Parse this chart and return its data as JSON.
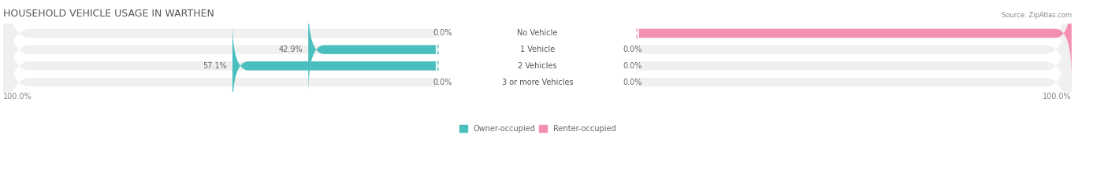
{
  "title": "HOUSEHOLD VEHICLE USAGE IN WARTHEN",
  "source": "Source: ZipAtlas.com",
  "categories": [
    "No Vehicle",
    "1 Vehicle",
    "2 Vehicles",
    "3 or more Vehicles"
  ],
  "owner_values": [
    0.0,
    42.9,
    57.1,
    0.0
  ],
  "renter_values": [
    100.0,
    0.0,
    0.0,
    0.0
  ],
  "owner_color": "#4bbfbf",
  "renter_color": "#f48fb1",
  "owner_light_color": "#b2dfdb",
  "renter_light_color": "#fce4ec",
  "bar_bg_color": "#f0f0f0",
  "bar_height": 0.55,
  "figsize": [
    14.06,
    2.33
  ],
  "dpi": 100,
  "title_fontsize": 9,
  "label_fontsize": 7,
  "category_fontsize": 7,
  "xlim": [
    -100,
    100
  ],
  "bottom_labels": [
    "100.0%",
    "100.0%"
  ],
  "bar_rounding": 0.3
}
